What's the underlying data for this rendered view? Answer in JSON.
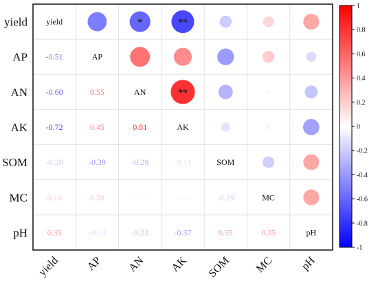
{
  "chart_data": {
    "type": "heatmap",
    "variables": [
      "yield",
      "AP",
      "AN",
      "AK",
      "SOM",
      "MC",
      "pH"
    ],
    "correlation_matrix": [
      [
        1.0,
        -0.51,
        -0.6,
        -0.72,
        -0.2,
        0.16,
        0.35
      ],
      [
        -0.51,
        1.0,
        0.55,
        0.45,
        -0.39,
        0.2,
        -0.14
      ],
      [
        -0.6,
        0.55,
        1.0,
        0.81,
        -0.29,
        0.03,
        -0.23
      ],
      [
        -0.72,
        0.45,
        0.81,
        1.0,
        -0.11,
        0.04,
        -0.37
      ],
      [
        -0.2,
        -0.39,
        -0.29,
        -0.11,
        1.0,
        -0.19,
        0.35
      ],
      [
        0.16,
        0.2,
        0.03,
        0.04,
        -0.19,
        1.0,
        0.35
      ],
      [
        0.35,
        -0.14,
        -0.23,
        -0.37,
        0.35,
        0.35,
        1.0
      ]
    ],
    "lower_triangle_labels": [
      [
        "-0.51"
      ],
      [
        "-0.60",
        "0.55"
      ],
      [
        "-0.72",
        "0.45",
        "0.81"
      ],
      [
        "-0.20",
        "-0.39",
        "-0.29",
        "-0.11"
      ],
      [
        "0.16",
        "0.20",
        "0.03",
        "0.04",
        "-0.19"
      ],
      [
        "0.35",
        "-0.14",
        "-0.23",
        "-0.37",
        "0.35",
        "0.35"
      ]
    ],
    "significance_marks": [
      {
        "row": "yield",
        "col": "AN",
        "mark": "*"
      },
      {
        "row": "yield",
        "col": "AK",
        "mark": "**"
      },
      {
        "row": "AN",
        "col": "AK",
        "mark": "**"
      }
    ],
    "colorbar": {
      "range": [
        -1,
        1
      ],
      "ticks": [
        "1",
        "0.8",
        "0.6",
        "0.4",
        "0.2",
        "0",
        "-0.2",
        "-0.4",
        "-0.6",
        "-0.8",
        "-1"
      ],
      "ramp_colors": [
        "#0000ff",
        "#ffffff",
        "#ff0000"
      ]
    },
    "upper_triangle": "circles, area proportional to |r|",
    "lower_triangle": "numeric values colored by r",
    "grid": true
  }
}
